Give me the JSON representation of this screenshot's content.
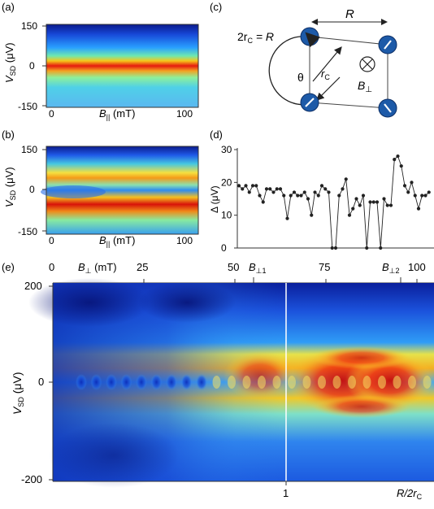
{
  "panels": {
    "a": {
      "label": "(a)",
      "ylabel_main": "V",
      "ylabel_sub": "SD",
      "ylabel_unit": " (μV)",
      "yticks": [
        "150",
        "0",
        "-150"
      ],
      "xticks": [
        "0",
        "100"
      ],
      "xlabel_main": "B",
      "xlabel_sub": "||",
      "xlabel_unit": " (mT)"
    },
    "b": {
      "label": "(b)",
      "ylabel_main": "V",
      "ylabel_sub": "SD",
      "ylabel_unit": " (μV)",
      "yticks": [
        "150",
        "0",
        "-150"
      ],
      "xticks": [
        "0",
        "100"
      ],
      "xlabel_main": "B",
      "xlabel_sub": "||",
      "xlabel_unit": " (mT)"
    },
    "c": {
      "label": "(c)",
      "eq_left": "2r",
      "eq_sub": "C",
      "eq_right": " = R",
      "R_label": "R",
      "rc_main": "r",
      "rc_sub": "C",
      "theta": "θ",
      "bperp_main": "B",
      "bperp_sub": "⊥"
    },
    "d": {
      "label": "(d)",
      "ylabel": "Δ (μV)",
      "yticks": [
        "30",
        "20",
        "10",
        "0"
      ]
    },
    "e": {
      "label": "(e)",
      "top_axis_main": "B",
      "top_axis_sub": "⊥",
      "top_axis_unit": " (mT)",
      "top_ticks": [
        "0",
        "25",
        "50",
        "75",
        "100"
      ],
      "bperp1_main": "B",
      "bperp1_sub": "⊥1",
      "bperp2_main": "B",
      "bperp2_sub": "⊥2",
      "yticks": [
        "200",
        "0",
        "-200"
      ],
      "ylabel_main": "V",
      "ylabel_sub": "SD",
      "ylabel_unit": " (μV)",
      "bottom_tick": "1",
      "bottom_label_main": "R/2r",
      "bottom_label_sub": "C"
    }
  },
  "chart_data": [
    {
      "type": "heatmap",
      "panel": "a",
      "xlabel": "B|| (mT)",
      "ylabel": "VSD (μV)",
      "xlim": [
        0,
        100
      ],
      "ylim": [
        -150,
        150
      ],
      "colormap": "jet",
      "description_bands": [
        {
          "y": 150,
          "level": 0.1
        },
        {
          "y": 75,
          "level": 0.3
        },
        {
          "y": 0,
          "level": 0.88
        },
        {
          "y": -75,
          "level": 0.35
        },
        {
          "y": -150,
          "level": 0.3
        }
      ]
    },
    {
      "type": "heatmap",
      "panel": "b",
      "xlabel": "B|| (mT)",
      "ylabel": "VSD (μV)",
      "xlim": [
        0,
        100
      ],
      "ylim": [
        -150,
        150
      ],
      "colormap": "jet",
      "description_bands": [
        {
          "y": 150,
          "level": 0.08
        },
        {
          "y": 40,
          "level": 0.68
        },
        {
          "y": 0,
          "level": 0.35
        },
        {
          "y": -40,
          "level": 0.9
        },
        {
          "y": -150,
          "level": 0.25
        }
      ]
    },
    {
      "type": "scatter",
      "panel": "d",
      "ylabel": "Δ (μV)",
      "ylim": [
        0,
        30
      ],
      "xlim": [
        0,
        112
      ],
      "x": [
        0,
        2,
        4,
        6,
        8,
        10,
        12,
        14,
        16,
        18,
        20,
        22,
        24,
        26,
        28,
        30,
        32,
        34,
        36,
        38,
        40,
        42,
        44,
        46,
        48,
        50,
        52,
        54,
        56,
        58,
        60,
        62,
        64,
        66,
        68,
        70,
        72,
        74,
        76,
        78,
        80,
        82,
        84,
        86,
        88,
        90,
        92,
        94,
        96,
        98,
        100,
        102,
        104,
        106,
        108,
        110
      ],
      "y": [
        19,
        18,
        19,
        17,
        19,
        19,
        16,
        14,
        18,
        18,
        17,
        18,
        18,
        16,
        9,
        16,
        17,
        16,
        16,
        17,
        15,
        10,
        17,
        16,
        19,
        18,
        17,
        0,
        0,
        16,
        18,
        21,
        10,
        12,
        15,
        13,
        16,
        0,
        14,
        14,
        14,
        0,
        15,
        13,
        13,
        27,
        28,
        25,
        19,
        17,
        20,
        16,
        12,
        16,
        16,
        17
      ]
    },
    {
      "type": "heatmap",
      "panel": "e",
      "xlabel": "R/2rC",
      "ylabel": "VSD (μV)",
      "top_axis": "B⊥ (mT)",
      "top_xlim": [
        0,
        110
      ],
      "ylim": [
        -200,
        200
      ],
      "colormap": "jet",
      "marker_lines": [
        {
          "axis": "R/2rC",
          "value": 1
        }
      ]
    }
  ]
}
